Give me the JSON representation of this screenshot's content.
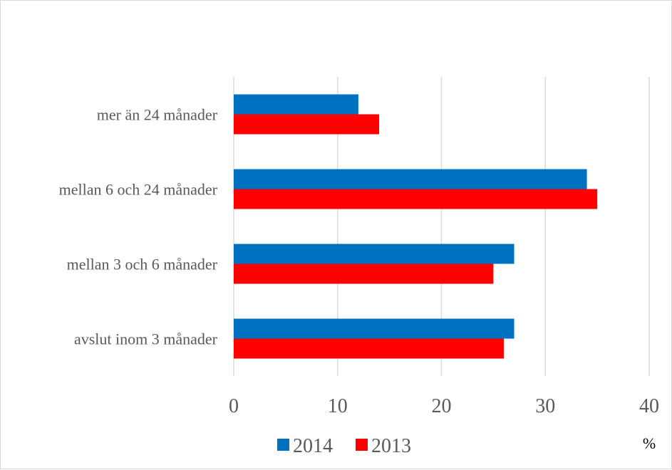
{
  "chart_data": {
    "type": "bar",
    "orientation": "horizontal",
    "categories": [
      "avslut inom 3 månader",
      "mellan 3 och 6 månader",
      "mellan 6 och 24 månader",
      "mer än 24 månader"
    ],
    "series": [
      {
        "name": "2014",
        "color": "#0070c0",
        "values": [
          27,
          27,
          34,
          12
        ]
      },
      {
        "name": "2013",
        "color": "#ff0000",
        "values": [
          26,
          25,
          35,
          14
        ]
      }
    ],
    "xlim": [
      0,
      40
    ],
    "xticks": [
      "0",
      "10",
      "20",
      "30",
      "40"
    ],
    "unit_label": "%",
    "grid": true,
    "legend_position": "bottom"
  }
}
